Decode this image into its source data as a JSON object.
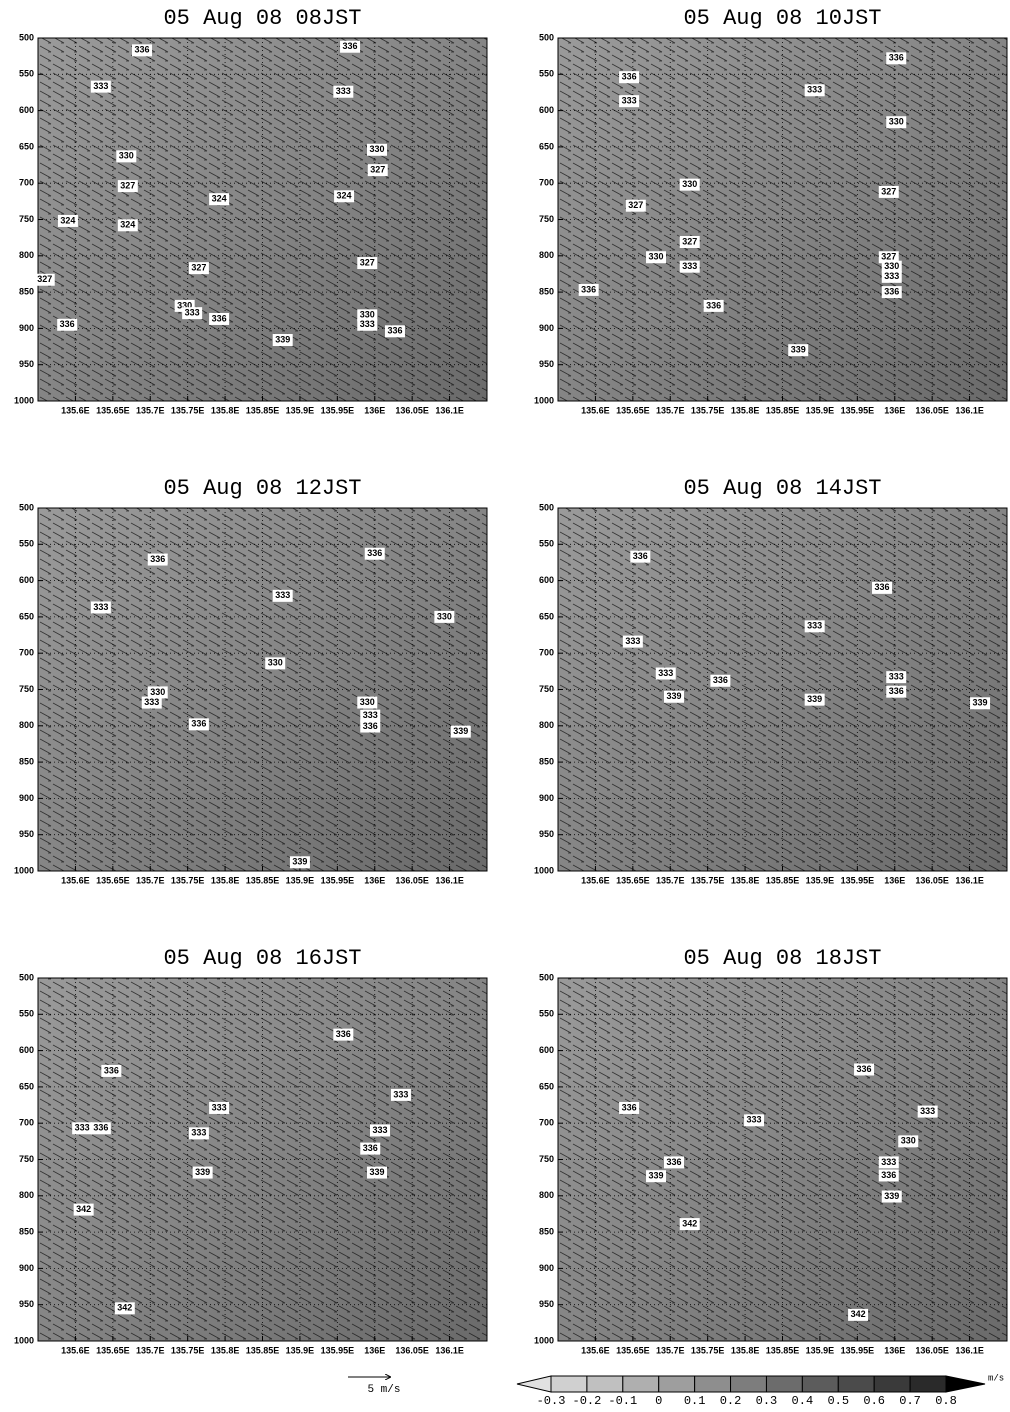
{
  "chart_data": [
    {
      "type": "contour",
      "title": "05 Aug 08 08JST",
      "xlim": [
        135.55,
        136.15
      ],
      "ylim": [
        1000,
        500
      ],
      "grid": true,
      "yticks": [
        500,
        550,
        600,
        650,
        700,
        750,
        800,
        850,
        900,
        950,
        1000
      ],
      "xticks": [
        {
          "value": 135.6,
          "label": "135.6E"
        },
        {
          "value": 135.65,
          "label": "135.65E"
        },
        {
          "value": 135.7,
          "label": "135.7E"
        },
        {
          "value": 135.75,
          "label": "135.75E"
        },
        {
          "value": 135.8,
          "label": "135.8E"
        },
        {
          "value": 135.85,
          "label": "135.85E"
        },
        {
          "value": 135.9,
          "label": "135.9E"
        },
        {
          "value": 135.95,
          "label": "135.95E"
        },
        {
          "value": 136.0,
          "label": "136E"
        },
        {
          "value": 136.05,
          "label": "136.05E"
        },
        {
          "value": 136.1,
          "label": "136.1E"
        }
      ],
      "contour_labels": [
        {
          "level": 336,
          "x": 135.689,
          "y": 517
        },
        {
          "level": 336,
          "x": 135.967,
          "y": 512
        },
        {
          "level": 333,
          "x": 135.634,
          "y": 567
        },
        {
          "level": 333,
          "x": 135.958,
          "y": 574
        },
        {
          "level": 330,
          "x": 135.668,
          "y": 663
        },
        {
          "level": 330,
          "x": 136.003,
          "y": 654
        },
        {
          "level": 327,
          "x": 136.004,
          "y": 682
        },
        {
          "level": 327,
          "x": 135.67,
          "y": 704
        },
        {
          "level": 324,
          "x": 135.792,
          "y": 722
        },
        {
          "level": 324,
          "x": 135.959,
          "y": 718
        },
        {
          "level": 324,
          "x": 135.59,
          "y": 752
        },
        {
          "level": 324,
          "x": 135.67,
          "y": 758
        },
        {
          "level": 327,
          "x": 135.559,
          "y": 833
        },
        {
          "level": 327,
          "x": 135.765,
          "y": 817
        },
        {
          "level": 327,
          "x": 135.99,
          "y": 810
        },
        {
          "level": 330,
          "x": 135.746,
          "y": 869
        },
        {
          "level": 333,
          "x": 135.756,
          "y": 879
        },
        {
          "level": 336,
          "x": 135.792,
          "y": 887
        },
        {
          "level": 330,
          "x": 135.99,
          "y": 882
        },
        {
          "level": 333,
          "x": 135.99,
          "y": 895
        },
        {
          "level": 336,
          "x": 136.027,
          "y": 904
        },
        {
          "level": 339,
          "x": 135.877,
          "y": 916
        },
        {
          "level": 336,
          "x": 135.589,
          "y": 895
        }
      ]
    },
    {
      "type": "contour",
      "title": "05 Aug 08 10JST",
      "xlim": [
        135.55,
        136.15
      ],
      "ylim": [
        1000,
        500
      ],
      "grid": true,
      "yticks": [
        500,
        550,
        600,
        650,
        700,
        750,
        800,
        850,
        900,
        950,
        1000
      ],
      "xticks": [
        {
          "value": 135.6,
          "label": "135.6E"
        },
        {
          "value": 135.65,
          "label": "135.65E"
        },
        {
          "value": 135.7,
          "label": "135.7E"
        },
        {
          "value": 135.75,
          "label": "135.75E"
        },
        {
          "value": 135.8,
          "label": "135.8E"
        },
        {
          "value": 135.85,
          "label": "135.85E"
        },
        {
          "value": 135.9,
          "label": "135.9E"
        },
        {
          "value": 135.95,
          "label": "135.95E"
        },
        {
          "value": 136.0,
          "label": "136E"
        },
        {
          "value": 136.05,
          "label": "136.05E"
        },
        {
          "value": 136.1,
          "label": "136.1E"
        }
      ],
      "contour_labels": [
        {
          "level": 336,
          "x": 136.002,
          "y": 528
        },
        {
          "level": 336,
          "x": 135.645,
          "y": 554
        },
        {
          "level": 333,
          "x": 135.645,
          "y": 587
        },
        {
          "level": 333,
          "x": 135.893,
          "y": 572
        },
        {
          "level": 330,
          "x": 136.002,
          "y": 616
        },
        {
          "level": 330,
          "x": 135.726,
          "y": 702
        },
        {
          "level": 327,
          "x": 135.992,
          "y": 712
        },
        {
          "level": 327,
          "x": 135.654,
          "y": 731
        },
        {
          "level": 327,
          "x": 135.726,
          "y": 781
        },
        {
          "level": 330,
          "x": 135.681,
          "y": 802
        },
        {
          "level": 333,
          "x": 135.726,
          "y": 815
        },
        {
          "level": 327,
          "x": 135.992,
          "y": 802
        },
        {
          "level": 330,
          "x": 135.996,
          "y": 815
        },
        {
          "level": 333,
          "x": 135.996,
          "y": 829
        },
        {
          "level": 336,
          "x": 135.996,
          "y": 850
        },
        {
          "level": 336,
          "x": 135.591,
          "y": 847
        },
        {
          "level": 336,
          "x": 135.758,
          "y": 869
        },
        {
          "level": 339,
          "x": 135.871,
          "y": 930
        }
      ]
    },
    {
      "type": "contour",
      "title": "05 Aug 08 12JST",
      "xlim": [
        135.55,
        136.15
      ],
      "ylim": [
        1000,
        500
      ],
      "grid": true,
      "yticks": [
        500,
        550,
        600,
        650,
        700,
        750,
        800,
        850,
        900,
        950,
        1000
      ],
      "xticks": [
        {
          "value": 135.6,
          "label": "135.6E"
        },
        {
          "value": 135.65,
          "label": "135.65E"
        },
        {
          "value": 135.7,
          "label": "135.7E"
        },
        {
          "value": 135.75,
          "label": "135.75E"
        },
        {
          "value": 135.8,
          "label": "135.8E"
        },
        {
          "value": 135.85,
          "label": "135.85E"
        },
        {
          "value": 135.9,
          "label": "135.9E"
        },
        {
          "value": 135.95,
          "label": "135.95E"
        },
        {
          "value": 136.0,
          "label": "136E"
        },
        {
          "value": 136.05,
          "label": "136.05E"
        },
        {
          "value": 136.1,
          "label": "136.1E"
        }
      ],
      "contour_labels": [
        {
          "level": 336,
          "x": 135.71,
          "y": 571
        },
        {
          "level": 336,
          "x": 136.0,
          "y": 563
        },
        {
          "level": 333,
          "x": 135.634,
          "y": 637
        },
        {
          "level": 333,
          "x": 135.877,
          "y": 621
        },
        {
          "level": 330,
          "x": 136.093,
          "y": 650
        },
        {
          "level": 330,
          "x": 135.867,
          "y": 714
        },
        {
          "level": 330,
          "x": 135.71,
          "y": 754
        },
        {
          "level": 333,
          "x": 135.702,
          "y": 768
        },
        {
          "level": 336,
          "x": 135.765,
          "y": 798
        },
        {
          "level": 330,
          "x": 135.99,
          "y": 768
        },
        {
          "level": 333,
          "x": 135.994,
          "y": 786
        },
        {
          "level": 336,
          "x": 135.994,
          "y": 801
        },
        {
          "level": 339,
          "x": 136.115,
          "y": 808
        },
        {
          "level": 339,
          "x": 135.9,
          "y": 988
        }
      ]
    },
    {
      "type": "contour",
      "title": "05 Aug 08 14JST",
      "xlim": [
        135.55,
        136.15
      ],
      "ylim": [
        1000,
        500
      ],
      "grid": true,
      "yticks": [
        500,
        550,
        600,
        650,
        700,
        750,
        800,
        850,
        900,
        950,
        1000
      ],
      "xticks": [
        {
          "value": 135.6,
          "label": "135.6E"
        },
        {
          "value": 135.65,
          "label": "135.65E"
        },
        {
          "value": 135.7,
          "label": "135.7E"
        },
        {
          "value": 135.75,
          "label": "135.75E"
        },
        {
          "value": 135.8,
          "label": "135.8E"
        },
        {
          "value": 135.85,
          "label": "135.85E"
        },
        {
          "value": 135.9,
          "label": "135.9E"
        },
        {
          "value": 135.95,
          "label": "135.95E"
        },
        {
          "value": 136.0,
          "label": "136E"
        },
        {
          "value": 136.05,
          "label": "136.05E"
        },
        {
          "value": 136.1,
          "label": "136.1E"
        }
      ],
      "contour_labels": [
        {
          "level": 336,
          "x": 135.66,
          "y": 567
        },
        {
          "level": 336,
          "x": 135.983,
          "y": 610
        },
        {
          "level": 333,
          "x": 135.893,
          "y": 663
        },
        {
          "level": 333,
          "x": 135.65,
          "y": 684
        },
        {
          "level": 333,
          "x": 135.694,
          "y": 728
        },
        {
          "level": 336,
          "x": 135.767,
          "y": 738
        },
        {
          "level": 339,
          "x": 135.705,
          "y": 760
        },
        {
          "level": 339,
          "x": 135.893,
          "y": 764
        },
        {
          "level": 333,
          "x": 136.002,
          "y": 733
        },
        {
          "level": 336,
          "x": 136.002,
          "y": 753
        },
        {
          "level": 339,
          "x": 136.114,
          "y": 769
        }
      ]
    },
    {
      "type": "contour",
      "title": "05 Aug 08 16JST",
      "xlim": [
        135.55,
        136.15
      ],
      "ylim": [
        1000,
        500
      ],
      "grid": true,
      "yticks": [
        500,
        550,
        600,
        650,
        700,
        750,
        800,
        850,
        900,
        950,
        1000
      ],
      "xticks": [
        {
          "value": 135.6,
          "label": "135.6E"
        },
        {
          "value": 135.65,
          "label": "135.65E"
        },
        {
          "value": 135.7,
          "label": "135.7E"
        },
        {
          "value": 135.75,
          "label": "135.75E"
        },
        {
          "value": 135.8,
          "label": "135.8E"
        },
        {
          "value": 135.85,
          "label": "135.85E"
        },
        {
          "value": 135.9,
          "label": "135.9E"
        },
        {
          "value": 135.95,
          "label": "135.95E"
        },
        {
          "value": 136.0,
          "label": "136E"
        },
        {
          "value": 136.05,
          "label": "136.05E"
        },
        {
          "value": 136.1,
          "label": "136.1E"
        }
      ],
      "contour_labels": [
        {
          "level": 336,
          "x": 135.958,
          "y": 578
        },
        {
          "level": 336,
          "x": 135.648,
          "y": 628
        },
        {
          "level": 333,
          "x": 136.035,
          "y": 661
        },
        {
          "level": 333,
          "x": 135.792,
          "y": 679
        },
        {
          "level": 333,
          "x": 135.609,
          "y": 707
        },
        {
          "level": 336,
          "x": 135.634,
          "y": 707
        },
        {
          "level": 333,
          "x": 135.765,
          "y": 714
        },
        {
          "level": 333,
          "x": 136.007,
          "y": 710
        },
        {
          "level": 336,
          "x": 135.994,
          "y": 735
        },
        {
          "level": 339,
          "x": 135.77,
          "y": 768
        },
        {
          "level": 339,
          "x": 136.003,
          "y": 768
        },
        {
          "level": 342,
          "x": 135.611,
          "y": 819
        },
        {
          "level": 342,
          "x": 135.666,
          "y": 955
        }
      ]
    },
    {
      "type": "contour",
      "title": "05 Aug 08 18JST",
      "xlim": [
        135.55,
        136.15
      ],
      "ylim": [
        1000,
        500
      ],
      "grid": true,
      "yticks": [
        500,
        550,
        600,
        650,
        700,
        750,
        800,
        850,
        900,
        950,
        1000
      ],
      "xticks": [
        {
          "value": 135.6,
          "label": "135.6E"
        },
        {
          "value": 135.65,
          "label": "135.65E"
        },
        {
          "value": 135.7,
          "label": "135.7E"
        },
        {
          "value": 135.75,
          "label": "135.75E"
        },
        {
          "value": 135.8,
          "label": "135.8E"
        },
        {
          "value": 135.85,
          "label": "135.85E"
        },
        {
          "value": 135.9,
          "label": "135.9E"
        },
        {
          "value": 135.95,
          "label": "135.95E"
        },
        {
          "value": 136.0,
          "label": "136E"
        },
        {
          "value": 136.05,
          "label": "136.05E"
        },
        {
          "value": 136.1,
          "label": "136.1E"
        }
      ],
      "contour_labels": [
        {
          "level": 336,
          "x": 135.959,
          "y": 626
        },
        {
          "level": 336,
          "x": 135.645,
          "y": 679
        },
        {
          "level": 333,
          "x": 135.812,
          "y": 696
        },
        {
          "level": 333,
          "x": 136.044,
          "y": 684
        },
        {
          "level": 330,
          "x": 136.018,
          "y": 725
        },
        {
          "level": 336,
          "x": 135.705,
          "y": 754
        },
        {
          "level": 339,
          "x": 135.681,
          "y": 773
        },
        {
          "level": 333,
          "x": 135.992,
          "y": 754
        },
        {
          "level": 336,
          "x": 135.992,
          "y": 772
        },
        {
          "level": 339,
          "x": 135.996,
          "y": 801
        },
        {
          "level": 342,
          "x": 135.726,
          "y": 839
        },
        {
          "level": 342,
          "x": 135.951,
          "y": 964
        }
      ]
    }
  ],
  "colorbar": {
    "levels": [
      -0.3,
      -0.2,
      -0.1,
      0,
      0.1,
      0.2,
      0.3,
      0.4,
      0.5,
      0.6,
      0.7,
      0.8
    ],
    "unit": "m/s"
  },
  "reference_vector": "5 m/s"
}
